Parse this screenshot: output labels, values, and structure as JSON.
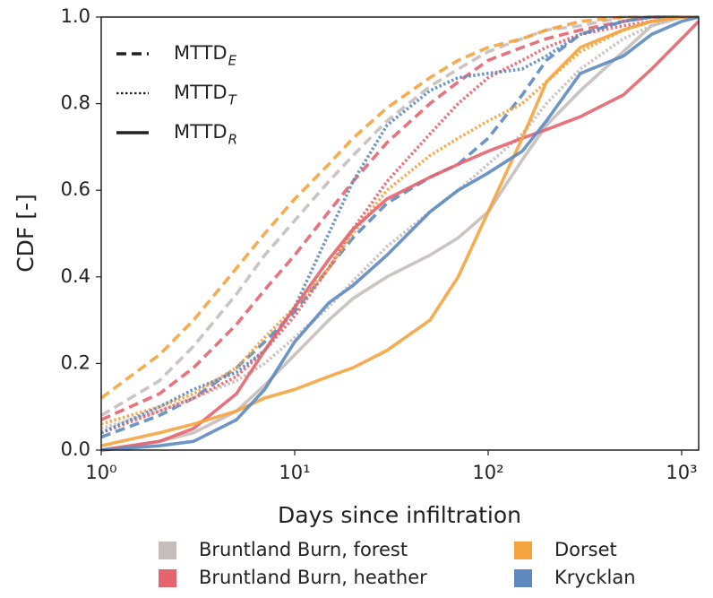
{
  "chart_data": {
    "type": "line",
    "xlabel": "Days since infiltration",
    "ylabel": "CDF [-]",
    "log_x": true,
    "xlim": [
      1,
      1225
    ],
    "ylim": [
      0,
      1
    ],
    "xticks": [
      {
        "value": 1,
        "label": "10⁰"
      },
      {
        "value": 10,
        "label": "10¹"
      },
      {
        "value": 100,
        "label": "10²"
      },
      {
        "value": 1000,
        "label": "10³"
      }
    ],
    "yticks": [
      {
        "value": 0,
        "label": "0.0"
      },
      0.2,
      0.4,
      0.6,
      0.8,
      {
        "value": 1,
        "label": "1.0"
      }
    ],
    "legend": "upper left",
    "metrics": [
      {
        "name": "MTTD",
        "subscript": "E",
        "dash": "dashed"
      },
      {
        "name": "MTTD",
        "subscript": "T",
        "dash": "dotted"
      },
      {
        "name": "MTTD",
        "subscript": "R",
        "dash": "solid"
      }
    ],
    "x": [
      1,
      2,
      3,
      5,
      7,
      10,
      15,
      20,
      30,
      50,
      70,
      100,
      150,
      200,
      300,
      500,
      700,
      1000,
      1225
    ],
    "catchments": [
      {
        "name": "Bruntland Burn, forest",
        "color": "#c6beba",
        "curves": [
          {
            "values": [
              0.08,
              0.16,
              0.24,
              0.36,
              0.45,
              0.53,
              0.62,
              0.68,
              0.76,
              0.84,
              0.88,
              0.92,
              0.95,
              0.97,
              0.98,
              1,
              1,
              1,
              1
            ]
          },
          {
            "values": [
              0.05,
              0.09,
              0.12,
              0.16,
              0.2,
              0.26,
              0.33,
              0.39,
              0.47,
              0.55,
              0.6,
              0.66,
              0.73,
              0.8,
              0.88,
              0.95,
              0.98,
              1,
              1
            ]
          },
          {
            "values": [
              0,
              0.02,
              0.04,
              0.09,
              0.15,
              0.22,
              0.3,
              0.35,
              0.4,
              0.45,
              0.49,
              0.55,
              0.67,
              0.75,
              0.83,
              0.92,
              0.98,
              1,
              1
            ]
          }
        ]
      },
      {
        "name": "Bruntland Burn, heather",
        "color": "#e5646e",
        "curves": [
          {
            "values": [
              0.07,
              0.13,
              0.19,
              0.29,
              0.37,
              0.45,
              0.55,
              0.62,
              0.71,
              0.8,
              0.85,
              0.9,
              0.93,
              0.95,
              0.97,
              0.99,
              1,
              1,
              1
            ]
          },
          {
            "values": [
              0.04,
              0.09,
              0.12,
              0.17,
              0.23,
              0.31,
              0.42,
              0.51,
              0.62,
              0.73,
              0.8,
              0.86,
              0.9,
              0.93,
              0.96,
              0.98,
              0.99,
              1,
              1
            ]
          },
          {
            "values": [
              0,
              0.02,
              0.05,
              0.13,
              0.23,
              0.33,
              0.44,
              0.51,
              0.58,
              0.63,
              0.66,
              0.69,
              0.72,
              0.74,
              0.77,
              0.82,
              0.88,
              0.95,
              0.99
            ]
          }
        ]
      },
      {
        "name": "Dorset",
        "color": "#f5a33e",
        "curves": [
          {
            "values": [
              0.12,
              0.22,
              0.3,
              0.42,
              0.5,
              0.58,
              0.66,
              0.72,
              0.79,
              0.86,
              0.9,
              0.93,
              0.95,
              0.97,
              0.99,
              1,
              1,
              1,
              1
            ]
          },
          {
            "values": [
              0.06,
              0.1,
              0.13,
              0.19,
              0.26,
              0.33,
              0.42,
              0.5,
              0.6,
              0.68,
              0.72,
              0.76,
              0.8,
              0.85,
              0.92,
              0.97,
              0.99,
              1,
              1
            ]
          },
          {
            "values": [
              0.01,
              0.04,
              0.06,
              0.09,
              0.12,
              0.14,
              0.17,
              0.19,
              0.23,
              0.3,
              0.4,
              0.55,
              0.72,
              0.85,
              0.93,
              0.97,
              0.99,
              1,
              1
            ]
          }
        ]
      },
      {
        "name": "Krycklan",
        "color": "#5d89bf",
        "curves": [
          {
            "values": [
              0.03,
              0.08,
              0.12,
              0.19,
              0.25,
              0.32,
              0.42,
              0.49,
              0.57,
              0.63,
              0.66,
              0.72,
              0.82,
              0.9,
              0.96,
              0.99,
              1,
              1,
              1
            ]
          },
          {
            "values": [
              0.04,
              0.1,
              0.14,
              0.18,
              0.23,
              0.33,
              0.5,
              0.62,
              0.75,
              0.83,
              0.86,
              0.87,
              0.88,
              0.91,
              0.96,
              0.99,
              1,
              1,
              1
            ]
          },
          {
            "values": [
              0,
              0.01,
              0.02,
              0.07,
              0.14,
              0.25,
              0.34,
              0.38,
              0.45,
              0.55,
              0.6,
              0.64,
              0.69,
              0.76,
              0.87,
              0.91,
              0.96,
              0.99,
              1
            ]
          }
        ]
      }
    ]
  }
}
